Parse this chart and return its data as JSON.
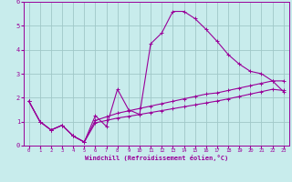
{
  "xlabel": "Windchill (Refroidissement éolien,°C)",
  "background_color": "#c8ecec",
  "grid_color": "#a0c8c8",
  "line_color": "#990099",
  "xlim": [
    -0.5,
    23.5
  ],
  "ylim": [
    0,
    6
  ],
  "xticks": [
    0,
    1,
    2,
    3,
    4,
    5,
    6,
    7,
    8,
    9,
    10,
    11,
    12,
    13,
    14,
    15,
    16,
    17,
    18,
    19,
    20,
    21,
    22,
    23
  ],
  "yticks": [
    0,
    1,
    2,
    3,
    4,
    5,
    6
  ],
  "series1_x": [
    0,
    1,
    2,
    3,
    4,
    5,
    6,
    7,
    8,
    9,
    10,
    11,
    12,
    13,
    14,
    15,
    16,
    17,
    18,
    19,
    20,
    21,
    22,
    23
  ],
  "series1_y": [
    1.85,
    1.0,
    0.65,
    0.85,
    0.4,
    0.15,
    1.25,
    0.8,
    2.35,
    1.5,
    1.3,
    4.25,
    4.7,
    5.6,
    5.6,
    5.3,
    4.85,
    4.35,
    3.8,
    3.4,
    3.1,
    3.0,
    2.7,
    2.25
  ],
  "series2_x": [
    0,
    1,
    2,
    3,
    4,
    5,
    6,
    7,
    8,
    9,
    10,
    11,
    12,
    13,
    14,
    15,
    16,
    17,
    18,
    19,
    20,
    21,
    22,
    23
  ],
  "series2_y": [
    1.85,
    1.0,
    0.65,
    0.85,
    0.4,
    0.15,
    1.05,
    1.2,
    1.35,
    1.45,
    1.55,
    1.65,
    1.75,
    1.85,
    1.95,
    2.05,
    2.15,
    2.2,
    2.3,
    2.4,
    2.5,
    2.6,
    2.7,
    2.7
  ],
  "series3_x": [
    0,
    1,
    2,
    3,
    4,
    5,
    6,
    7,
    8,
    9,
    10,
    11,
    12,
    13,
    14,
    15,
    16,
    17,
    18,
    19,
    20,
    21,
    22,
    23
  ],
  "series3_y": [
    1.85,
    1.0,
    0.65,
    0.85,
    0.4,
    0.15,
    0.95,
    1.05,
    1.15,
    1.22,
    1.3,
    1.38,
    1.46,
    1.54,
    1.62,
    1.7,
    1.78,
    1.86,
    1.95,
    2.05,
    2.15,
    2.25,
    2.35,
    2.3
  ]
}
